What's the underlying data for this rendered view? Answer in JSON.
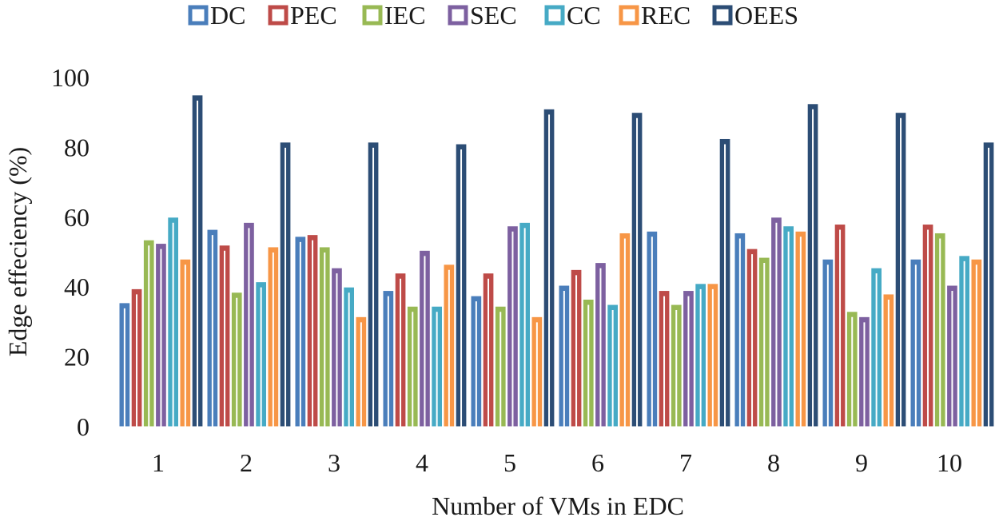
{
  "chart_data": {
    "type": "bar",
    "title": "",
    "xlabel": "Number of VMs in EDC",
    "ylabel": "Edge effeciency (%)",
    "ylim": [
      0,
      100
    ],
    "yticks": [
      0,
      20,
      40,
      60,
      80,
      100
    ],
    "grid": false,
    "legend_position": "top",
    "categories": [
      "1",
      "2",
      "3",
      "4",
      "5",
      "6",
      "7",
      "8",
      "9",
      "10"
    ],
    "series": [
      {
        "name": "DC",
        "color": "#4a7ebb",
        "values": [
          35.5,
          56.5,
          54.5,
          39,
          37.5,
          40.5,
          56,
          55.5,
          48,
          48
        ]
      },
      {
        "name": "PEC",
        "color": "#be4b48",
        "values": [
          39.5,
          52,
          55,
          44,
          44,
          45,
          39,
          51,
          58,
          58
        ]
      },
      {
        "name": "IEC",
        "color": "#98b954",
        "values": [
          53.5,
          38.5,
          51.5,
          34.5,
          34.5,
          36.5,
          35,
          48.5,
          33,
          55.5
        ]
      },
      {
        "name": "SEC",
        "color": "#7d60a0",
        "values": [
          52.5,
          58.5,
          45.5,
          50.5,
          57.5,
          47,
          39,
          60,
          31.5,
          40.5
        ]
      },
      {
        "name": "CC",
        "color": "#46aac5",
        "values": [
          60,
          41.5,
          40,
          34.5,
          58.5,
          35,
          41,
          57.5,
          45.5,
          49
        ]
      },
      {
        "name": "REC",
        "color": "#f79646",
        "values": [
          48,
          51.5,
          31.5,
          46.5,
          31.5,
          55.5,
          41,
          56,
          38,
          48
        ]
      },
      {
        "name": "OEES",
        "color": "#2c4d75",
        "values": [
          95,
          81.5,
          81.5,
          81,
          91,
          90,
          82.5,
          92.5,
          90,
          81.5
        ]
      }
    ]
  }
}
